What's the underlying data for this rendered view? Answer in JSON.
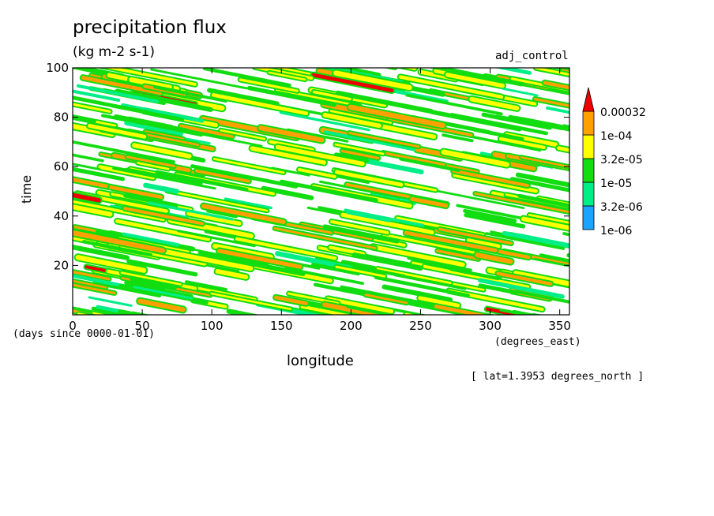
{
  "chart_data": {
    "type": "heatmap",
    "title": "precipitation flux",
    "units": "(kg m-2 s-1)",
    "run_label": "adj_control",
    "xlabel": "longitude",
    "ylabel": "time",
    "x_units": "(degrees_east)",
    "y_units": "(days since 0000-01-01)",
    "annotation": "[ lat=1.3953 degrees_north ]",
    "xlim": [
      0,
      357
    ],
    "ylim": [
      0,
      100
    ],
    "x_ticks": [
      0,
      50,
      100,
      150,
      200,
      250,
      300,
      350
    ],
    "y_ticks": [
      20,
      40,
      60,
      80,
      100
    ],
    "colorbar": {
      "levels": [
        "1e-06",
        "3.2e-06",
        "1e-05",
        "3.2e-05",
        "1e-04",
        "0.00032"
      ],
      "colors": [
        "#1aa3ff",
        "#00ee88",
        "#11dd11",
        "#ffff00",
        "#ffa000",
        "#ee0000"
      ],
      "extend": "max"
    },
    "features": {
      "description_free_pattern": "westward-propagating bands",
      "band_slope_deg_lon_per_day": -9
    }
  }
}
